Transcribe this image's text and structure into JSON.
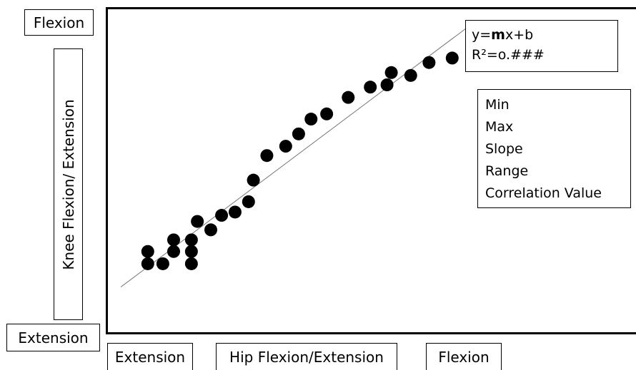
{
  "labels": {
    "y_top": "Flexion",
    "y_axis": "Knee Flexion/ Extension",
    "y_bottom": "Extension",
    "x_left": "Extension",
    "x_axis": "Hip Flexion/Extension",
    "x_right": "Flexion"
  },
  "equation": {
    "line1_prefix": "y=",
    "line1_bold": "m",
    "line1_suffix": "x+b",
    "line2": "R²=o.###"
  },
  "stats": [
    "Min",
    "Max",
    "Slope",
    "Range",
    "Correlation Value"
  ],
  "chart_data": {
    "type": "scatter",
    "title": "",
    "xlabel": "Hip Flexion/Extension",
    "ylabel": "Knee Flexion/ Extension",
    "xlim": [
      0,
      100
    ],
    "ylim": [
      0,
      100
    ],
    "grid": false,
    "axis_ticks": false,
    "series": [
      {
        "points": [
          {
            "x": 7.4,
            "y": 21.2
          },
          {
            "x": 7.4,
            "y": 25.0
          },
          {
            "x": 10.2,
            "y": 21.2
          },
          {
            "x": 12.2,
            "y": 25.0
          },
          {
            "x": 12.2,
            "y": 28.6
          },
          {
            "x": 15.5,
            "y": 21.2
          },
          {
            "x": 15.5,
            "y": 25.0
          },
          {
            "x": 15.5,
            "y": 28.6
          },
          {
            "x": 16.6,
            "y": 34.3
          },
          {
            "x": 19.1,
            "y": 31.7
          },
          {
            "x": 21.1,
            "y": 36.2
          },
          {
            "x": 23.6,
            "y": 37.2
          },
          {
            "x": 26.1,
            "y": 40.4
          },
          {
            "x": 27.0,
            "y": 47.1
          },
          {
            "x": 29.5,
            "y": 54.7
          },
          {
            "x": 33.0,
            "y": 57.6
          },
          {
            "x": 35.4,
            "y": 61.4
          },
          {
            "x": 37.7,
            "y": 66.0
          },
          {
            "x": 40.6,
            "y": 67.6
          },
          {
            "x": 44.6,
            "y": 72.7
          },
          {
            "x": 48.7,
            "y": 75.9
          },
          {
            "x": 51.8,
            "y": 76.6
          },
          {
            "x": 52.6,
            "y": 80.4
          },
          {
            "x": 56.2,
            "y": 79.5
          },
          {
            "x": 59.6,
            "y": 83.5
          },
          {
            "x": 63.9,
            "y": 84.9
          }
        ]
      }
    ],
    "trendline": {
      "x": [
        2.4,
        67.2
      ],
      "y": [
        14.0,
        95.0
      ]
    }
  }
}
